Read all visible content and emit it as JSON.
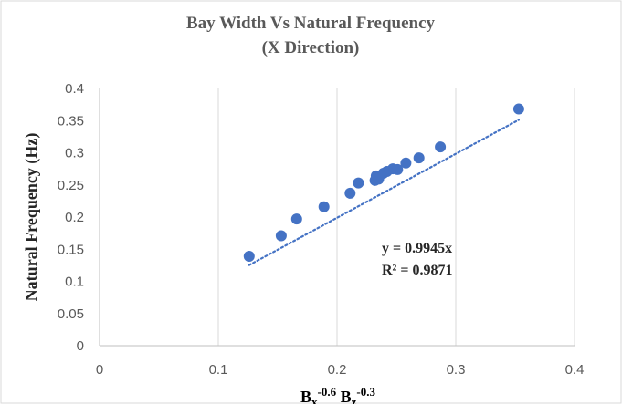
{
  "chart_data": {
    "type": "scatter",
    "title_line1": "Bay Width  Vs Natural Frequency",
    "title_line2": "(X Direction)",
    "ylabel": "Natural Frequency  (Hz)",
    "xlabel": {
      "parts": [
        {
          "text": "B",
          "kind": "base"
        },
        {
          "text": "x",
          "kind": "sub"
        },
        {
          "text": "-0.6",
          "kind": "sup"
        },
        {
          "text": " B",
          "kind": "base"
        },
        {
          "text": "z",
          "kind": "sub"
        },
        {
          "text": "-0.3",
          "kind": "sup"
        }
      ]
    },
    "xlim": [
      0,
      0.4
    ],
    "ylim": [
      0,
      0.4
    ],
    "x_ticks": [
      0,
      0.1,
      0.2,
      0.3,
      0.4
    ],
    "x_tick_labels": [
      "0",
      "0.1",
      "0.2",
      "0.3",
      "0.4"
    ],
    "y_ticks": [
      0,
      0.05,
      0.1,
      0.15,
      0.2,
      0.25,
      0.3,
      0.35,
      0.4
    ],
    "y_tick_labels": [
      "0",
      "0.05",
      "0.1",
      "0.15",
      "0.2",
      "0.25",
      "0.3",
      "0.35",
      "0.4"
    ],
    "grid": {
      "vertical": true,
      "horizontal": false
    },
    "points": [
      {
        "x": 0.126,
        "y": 0.139
      },
      {
        "x": 0.153,
        "y": 0.171
      },
      {
        "x": 0.166,
        "y": 0.197
      },
      {
        "x": 0.189,
        "y": 0.216
      },
      {
        "x": 0.211,
        "y": 0.237
      },
      {
        "x": 0.218,
        "y": 0.253
      },
      {
        "x": 0.232,
        "y": 0.257
      },
      {
        "x": 0.233,
        "y": 0.264
      },
      {
        "x": 0.235,
        "y": 0.259
      },
      {
        "x": 0.239,
        "y": 0.268
      },
      {
        "x": 0.242,
        "y": 0.271
      },
      {
        "x": 0.247,
        "y": 0.275
      },
      {
        "x": 0.251,
        "y": 0.274
      },
      {
        "x": 0.258,
        "y": 0.284
      },
      {
        "x": 0.269,
        "y": 0.292
      },
      {
        "x": 0.287,
        "y": 0.309
      },
      {
        "x": 0.353,
        "y": 0.368
      }
    ],
    "trendline": {
      "slope": 0.9945,
      "x_range": [
        0.126,
        0.353
      ],
      "style": "dotted",
      "equation_label": "y = 0.9945x",
      "r2_label": "R² = 0.9871"
    },
    "colors": {
      "marker": "#4472C4",
      "trendline": "#4472C4",
      "grid": "#d9d9d9",
      "axis": "#bfbfbf",
      "border": "#d9d9d9"
    }
  }
}
